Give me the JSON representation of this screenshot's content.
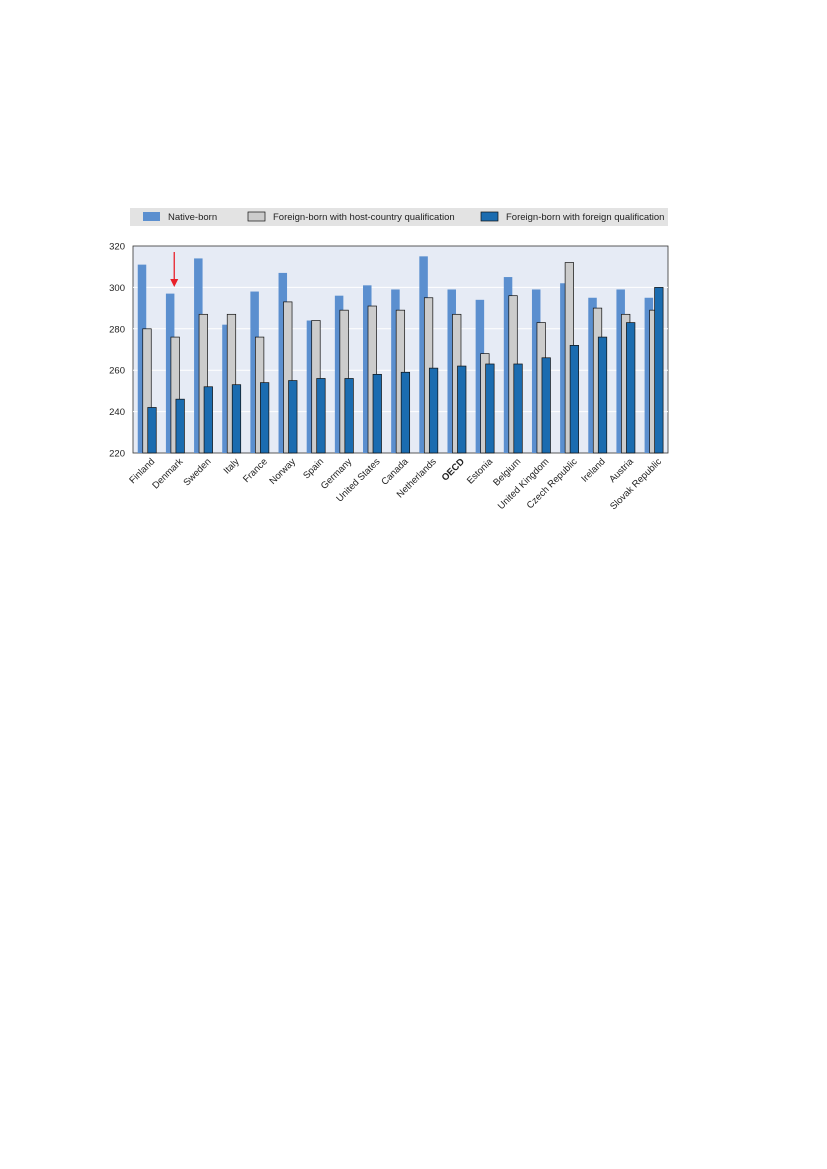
{
  "chart_data": {
    "type": "bar",
    "categories": [
      "Finland",
      "Denmark",
      "Sweden",
      "Italy",
      "France",
      "Norway",
      "Spain",
      "Germany",
      "United States",
      "Canada",
      "Netherlands",
      "OECD",
      "Estonia",
      "Belgium",
      "United Kingdom",
      "Czech Republic",
      "Ireland",
      "Austria",
      "Slovak Republic"
    ],
    "highlight_bold": "OECD",
    "marked_category": "Denmark",
    "series": [
      {
        "name": "Native-born",
        "color": "#5b8fcf",
        "values": [
          311,
          297,
          314,
          282,
          298,
          307,
          284,
          296,
          301,
          299,
          315,
          299,
          294,
          305,
          299,
          302,
          295,
          299,
          295
        ]
      },
      {
        "name": "Foreign-born with host-country qualification",
        "color": "#cccccc",
        "values": [
          280,
          276,
          287,
          287,
          276,
          293,
          284,
          289,
          291,
          289,
          295,
          287,
          268,
          296,
          283,
          312,
          290,
          287,
          289
        ]
      },
      {
        "name": "Foreign-born with foreign qualification",
        "color": "#1b6cb0",
        "values": [
          242,
          246,
          252,
          253,
          254,
          255,
          256,
          256,
          258,
          259,
          261,
          262,
          263,
          263,
          266,
          272,
          276,
          283,
          300
        ]
      }
    ],
    "yticks": [
      220,
      240,
      260,
      280,
      300,
      320
    ],
    "ylim": [
      220,
      320
    ],
    "grid": true,
    "legend_position": "top",
    "plot_background": "#e6ebf5",
    "marker_color": "#e8202a"
  }
}
